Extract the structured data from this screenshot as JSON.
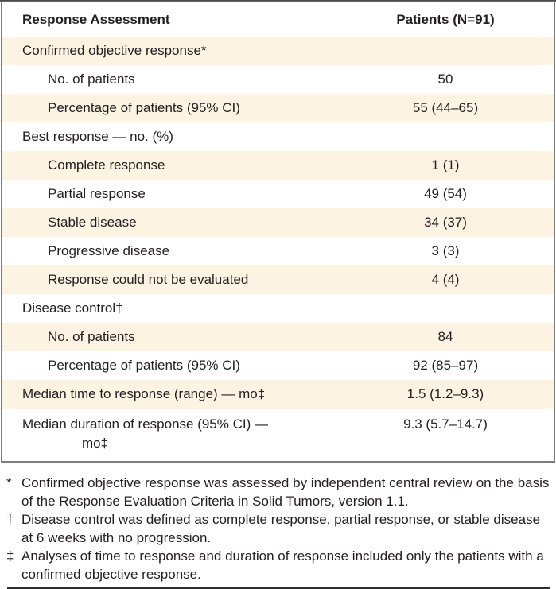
{
  "chart_data": {
    "type": "table",
    "title": "Response Assessment",
    "columns": [
      "Response Assessment",
      "Patients (N=91)"
    ],
    "rows": [
      {
        "label": "Confirmed objective response*",
        "value": "",
        "indent": 0,
        "shaded": true
      },
      {
        "label": "No. of patients",
        "value": "50",
        "indent": 1,
        "shaded": false
      },
      {
        "label": "Percentage of patients (95% CI)",
        "value": "55 (44–65)",
        "indent": 1,
        "shaded": true
      },
      {
        "label": "Best response — no. (%)",
        "value": "",
        "indent": 0,
        "shaded": false
      },
      {
        "label": "Complete response",
        "value": "1 (1)",
        "indent": 1,
        "shaded": true
      },
      {
        "label": "Partial response",
        "value": "49 (54)",
        "indent": 1,
        "shaded": false
      },
      {
        "label": "Stable disease",
        "value": "34 (37)",
        "indent": 1,
        "shaded": true
      },
      {
        "label": "Progressive disease",
        "value": "3 (3)",
        "indent": 1,
        "shaded": false
      },
      {
        "label": "Response could not be evaluated",
        "value": "4 (4)",
        "indent": 1,
        "shaded": true
      },
      {
        "label": "Disease control†",
        "value": "",
        "indent": 0,
        "shaded": false
      },
      {
        "label": "No. of patients",
        "value": "84",
        "indent": 1,
        "shaded": true
      },
      {
        "label": "Percentage of patients (95% CI)",
        "value": "92 (85–97)",
        "indent": 1,
        "shaded": false
      },
      {
        "label": "Median time to response (range) — mo‡",
        "value": "1.5 (1.2–9.3)",
        "indent": 0,
        "shaded": true
      },
      {
        "label": "Median duration of response (95% CI) —",
        "label_line2": "mo‡",
        "value": "9.3 (5.7–14.7)",
        "indent": 0,
        "shaded": false
      }
    ]
  },
  "footnotes": [
    {
      "marker": "*",
      "text": "Confirmed objective response was assessed by independent central review on the basis of the Response Evaluation Criteria in Solid Tumors, version 1.1."
    },
    {
      "marker": "†",
      "text": "Disease control was defined as complete response, partial response, or stable disease at 6 weeks with no progression."
    },
    {
      "marker": "‡",
      "text": "Analyses of time to response and duration of response included only the patients with a confirmed objective response."
    }
  ],
  "colors": {
    "shaded_row": "#fcf3e3",
    "text": "#231f20",
    "frame_border": "#7b7c7f",
    "top_rule": "#4a4a4c",
    "bottom_rule": "#2e2e30"
  }
}
